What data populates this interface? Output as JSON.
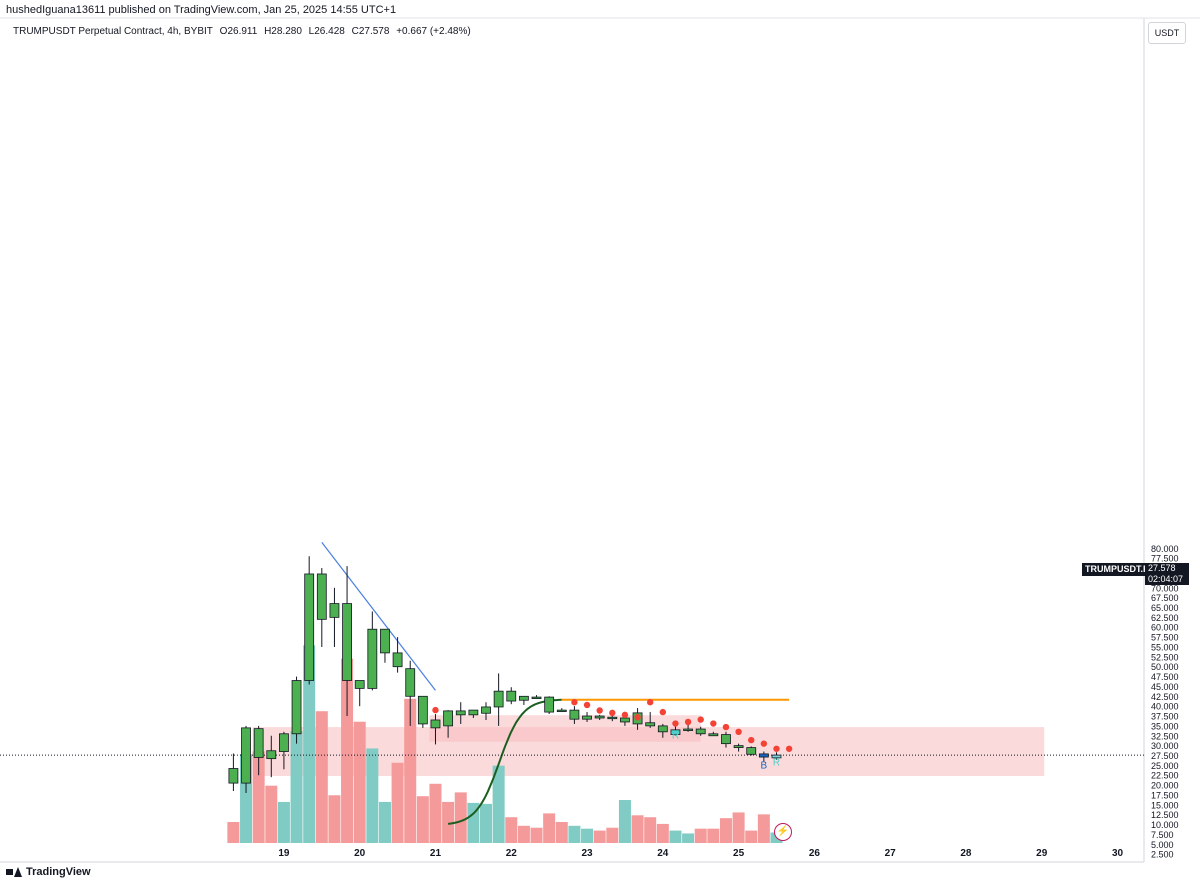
{
  "header": {
    "published": "hushedIguana13611 published on TradingView.com, Jan 25, 2025 14:55 UTC+1"
  },
  "symbol_bar": {
    "name": "TRUMPUSDT Perpetual Contract, 4h, BYBIT",
    "open": "O26.911",
    "high": "H28.280",
    "low": "L26.428",
    "close": "C27.578",
    "change": "+0.667 (+2.48%)"
  },
  "currency": "USDT",
  "brand": "TradingView",
  "price_label": {
    "symbol": "TRUMPUSDT.P",
    "price": "27.578",
    "countdown": "02:04:07"
  },
  "markers": {
    "b": "B",
    "r": "R"
  },
  "colors": {
    "up": "#4caf50",
    "down": "#4caf50",
    "vol_up": "#80cbc4",
    "vol_down": "#f49a9a",
    "zone": "#f8bbc0",
    "dots": "#f44336",
    "trendline": "#4a7fe0",
    "curve_green": "#1b5e20",
    "curve_orange": "#ff9800",
    "axis_text": "#131722",
    "last_line": "#131722"
  },
  "chart_data": {
    "type": "candlestick",
    "title": "TRUMPUSDT Perpetual Contract, 4h, BYBIT",
    "ylim": [
      0,
      82.5
    ],
    "y_ticks": [
      "2.500",
      "5.000",
      "7.500",
      "10.000",
      "12.500",
      "15.000",
      "17.500",
      "20.000",
      "22.500",
      "25.000",
      "27.500",
      "30.000",
      "32.500",
      "35.000",
      "37.500",
      "40.000",
      "42.500",
      "45.000",
      "47.500",
      "50.000",
      "52.500",
      "55.000",
      "57.500",
      "60.000",
      "62.500",
      "65.000",
      "67.500",
      "70.000",
      "72.500",
      "75.000",
      "77.500",
      "80.000"
    ],
    "x_ticks": [
      {
        "label": "19",
        "i": 4
      },
      {
        "label": "20",
        "i": 10
      },
      {
        "label": "21",
        "i": 16
      },
      {
        "label": "22",
        "i": 22
      },
      {
        "label": "23",
        "i": 28
      },
      {
        "label": "24",
        "i": 34
      },
      {
        "label": "25",
        "i": 40
      },
      {
        "label": "26",
        "i": 46
      },
      {
        "label": "27",
        "i": 52
      },
      {
        "label": "28",
        "i": 58
      },
      {
        "label": "29",
        "i": 64
      },
      {
        "label": "30",
        "i": 70
      }
    ],
    "candles": [
      {
        "o": 20.5,
        "h": 28.0,
        "l": 18.5,
        "c": 24.2
      },
      {
        "o": 20.5,
        "h": 35.0,
        "l": 18.0,
        "c": 34.5
      },
      {
        "o": 27.0,
        "h": 35.0,
        "l": 22.5,
        "c": 34.3
      },
      {
        "o": 26.7,
        "h": 32.5,
        "l": 22.0,
        "c": 28.7
      },
      {
        "o": 28.5,
        "h": 33.5,
        "l": 24.0,
        "c": 33.0
      },
      {
        "o": 33.0,
        "h": 47.5,
        "l": 30.5,
        "c": 46.5
      },
      {
        "o": 46.5,
        "h": 78.0,
        "l": 45.5,
        "c": 73.5
      },
      {
        "o": 62.0,
        "h": 75.0,
        "l": 55.0,
        "c": 73.5
      },
      {
        "o": 62.5,
        "h": 70.0,
        "l": 55.0,
        "c": 66.0
      },
      {
        "o": 46.5,
        "h": 75.5,
        "l": 37.5,
        "c": 66.0
      },
      {
        "o": 44.5,
        "h": 46.5,
        "l": 40.0,
        "c": 46.5
      },
      {
        "o": 44.5,
        "h": 64.0,
        "l": 44.0,
        "c": 59.5
      },
      {
        "o": 53.5,
        "h": 59.5,
        "l": 51.0,
        "c": 59.5
      },
      {
        "o": 50.0,
        "h": 57.5,
        "l": 48.5,
        "c": 53.5
      },
      {
        "o": 42.5,
        "h": 51.5,
        "l": 35.0,
        "c": 49.5
      },
      {
        "o": 35.5,
        "h": 42.5,
        "l": 34.5,
        "c": 42.5
      },
      {
        "o": 34.5,
        "h": 38.0,
        "l": 30.3,
        "c": 36.5
      },
      {
        "o": 35.0,
        "h": 39.0,
        "l": 32.0,
        "c": 38.8
      },
      {
        "o": 37.8,
        "h": 41.0,
        "l": 35.5,
        "c": 38.8
      },
      {
        "o": 37.8,
        "h": 39.0,
        "l": 37.0,
        "c": 39.0
      },
      {
        "o": 38.2,
        "h": 41.0,
        "l": 36.5,
        "c": 39.8
      },
      {
        "o": 39.8,
        "h": 48.3,
        "l": 35.0,
        "c": 43.8
      },
      {
        "o": 41.3,
        "h": 44.8,
        "l": 40.5,
        "c": 43.8
      },
      {
        "o": 41.5,
        "h": 42.5,
        "l": 40.3,
        "c": 42.5
      },
      {
        "o": 42.0,
        "h": 42.8,
        "l": 41.8,
        "c": 42.3
      },
      {
        "o": 38.5,
        "h": 42.5,
        "l": 38.0,
        "c": 42.3
      },
      {
        "o": 38.8,
        "h": 39.5,
        "l": 38.5,
        "c": 39.0
      },
      {
        "o": 36.7,
        "h": 40.0,
        "l": 35.5,
        "c": 39.0
      },
      {
        "o": 36.7,
        "h": 38.5,
        "l": 36.0,
        "c": 37.5
      },
      {
        "o": 37.0,
        "h": 37.8,
        "l": 36.5,
        "c": 37.5
      },
      {
        "o": 37.2,
        "h": 37.5,
        "l": 36.2,
        "c": 37.0
      },
      {
        "o": 36.0,
        "h": 38.0,
        "l": 35.0,
        "c": 37.0
      },
      {
        "o": 35.5,
        "h": 39.5,
        "l": 34.0,
        "c": 38.3
      },
      {
        "o": 35.8,
        "h": 38.5,
        "l": 34.5,
        "c": 35.0
      },
      {
        "o": 35.0,
        "h": 35.5,
        "l": 32.0,
        "c": 33.5
      },
      {
        "o": 32.8,
        "h": 35.0,
        "l": 32.5,
        "c": 34.0
      },
      {
        "o": 34.0,
        "h": 35.5,
        "l": 33.5,
        "c": 34.2
      },
      {
        "o": 34.2,
        "h": 34.8,
        "l": 32.5,
        "c": 33.0
      },
      {
        "o": 33.0,
        "h": 33.5,
        "l": 32.5,
        "c": 32.5
      },
      {
        "o": 32.8,
        "h": 33.5,
        "l": 29.5,
        "c": 30.5
      },
      {
        "o": 30.0,
        "h": 30.5,
        "l": 28.5,
        "c": 29.5
      },
      {
        "o": 29.5,
        "h": 29.8,
        "l": 27.5,
        "c": 27.8
      },
      {
        "o": 27.9,
        "h": 28.5,
        "l": 26.0,
        "c": 27.1
      },
      {
        "o": 26.9,
        "h": 28.3,
        "l": 26.4,
        "c": 27.6
      }
    ],
    "highlight_candles": [
      {
        "i": 35,
        "color": "#4dd0c8"
      },
      {
        "i": 42,
        "color": "#1565c0"
      },
      {
        "i": 43,
        "color": "#7fd6de"
      }
    ],
    "volume": [
      {
        "v": 2.2,
        "up": false
      },
      {
        "v": 9.3,
        "up": true
      },
      {
        "v": 9.6,
        "up": false
      },
      {
        "v": 6.0,
        "up": false
      },
      {
        "v": 4.3,
        "up": true
      },
      {
        "v": 11.7,
        "up": true
      },
      {
        "v": 20.7,
        "up": true
      },
      {
        "v": 13.8,
        "up": false
      },
      {
        "v": 5.0,
        "up": false
      },
      {
        "v": 19.3,
        "up": false
      },
      {
        "v": 12.7,
        "up": false
      },
      {
        "v": 9.9,
        "up": true
      },
      {
        "v": 4.3,
        "up": true
      },
      {
        "v": 8.4,
        "up": false
      },
      {
        "v": 15.1,
        "up": false
      },
      {
        "v": 4.9,
        "up": false
      },
      {
        "v": 6.2,
        "up": false
      },
      {
        "v": 4.3,
        "up": false
      },
      {
        "v": 5.3,
        "up": false
      },
      {
        "v": 4.2,
        "up": true
      },
      {
        "v": 4.1,
        "up": true
      },
      {
        "v": 8.1,
        "up": true
      },
      {
        "v": 2.7,
        "up": false
      },
      {
        "v": 1.8,
        "up": false
      },
      {
        "v": 1.6,
        "up": false
      },
      {
        "v": 3.1,
        "up": false
      },
      {
        "v": 2.2,
        "up": false
      },
      {
        "v": 1.8,
        "up": true
      },
      {
        "v": 1.5,
        "up": true
      },
      {
        "v": 1.3,
        "up": false
      },
      {
        "v": 1.6,
        "up": false
      },
      {
        "v": 4.5,
        "up": true
      },
      {
        "v": 2.9,
        "up": false
      },
      {
        "v": 2.7,
        "up": false
      },
      {
        "v": 2.0,
        "up": false
      },
      {
        "v": 1.3,
        "up": true
      },
      {
        "v": 1.0,
        "up": true
      },
      {
        "v": 1.5,
        "up": false
      },
      {
        "v": 1.5,
        "up": false
      },
      {
        "v": 2.6,
        "up": false
      },
      {
        "v": 3.2,
        "up": false
      },
      {
        "v": 1.3,
        "up": false
      },
      {
        "v": 3.0,
        "up": false
      },
      {
        "v": 1.1,
        "up": true
      }
    ],
    "sar_dots": [
      {
        "i": 16,
        "y": 39.0
      },
      {
        "i": 27,
        "y": 41.0
      },
      {
        "i": 28,
        "y": 40.3
      },
      {
        "i": 29,
        "y": 38.9
      },
      {
        "i": 30,
        "y": 38.3
      },
      {
        "i": 31,
        "y": 37.8
      },
      {
        "i": 32,
        "y": 37.2
      },
      {
        "i": 33,
        "y": 41.0
      },
      {
        "i": 34,
        "y": 38.5
      },
      {
        "i": 35,
        "y": 35.6
      },
      {
        "i": 36,
        "y": 36.0
      },
      {
        "i": 37,
        "y": 36.6
      },
      {
        "i": 38,
        "y": 35.6
      },
      {
        "i": 39,
        "y": 34.7
      },
      {
        "i": 40,
        "y": 33.5
      },
      {
        "i": 41,
        "y": 31.4
      },
      {
        "i": 42,
        "y": 30.5
      },
      {
        "i": 43,
        "y": 29.2
      },
      {
        "i": 44,
        "y": 29.2
      }
    ],
    "zones": [
      {
        "i0": 2,
        "i1": 64.2,
        "y0": 22.3,
        "y1": 34.7
      },
      {
        "i0": 16,
        "i1": 37,
        "y0": 31.0,
        "y1": 37.7
      }
    ],
    "trendline": {
      "i0": 7,
      "y0": 81.5,
      "i1": 16,
      "y1": 44.0
    },
    "curve": {
      "i0": 17,
      "i1": 26,
      "y0": 2.0,
      "y1": 15.0
    },
    "flat_line": {
      "i0": 26,
      "i1": 44,
      "y": 15.0
    },
    "last_price": 27.578
  }
}
